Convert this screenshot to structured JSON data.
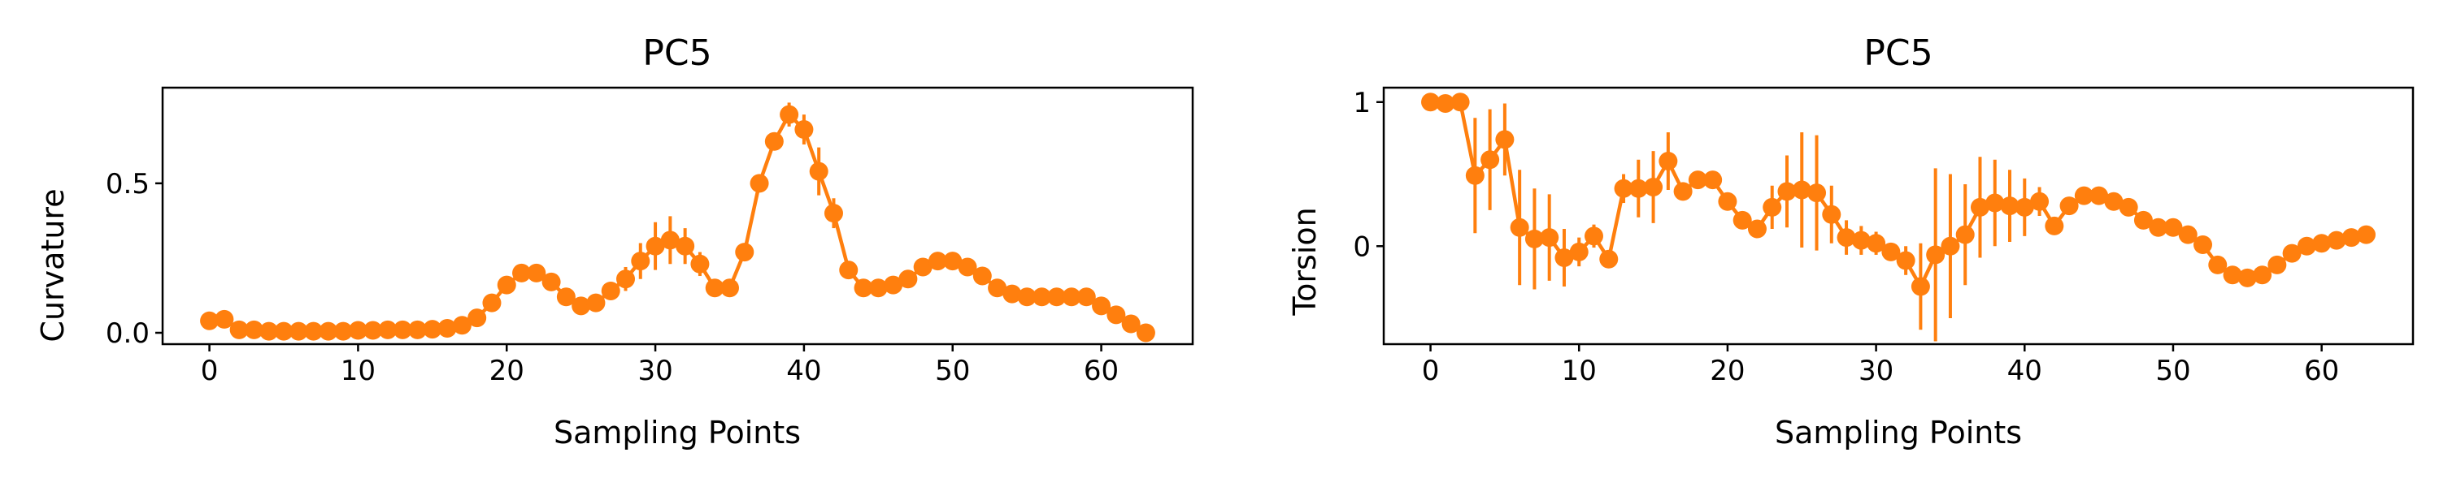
{
  "chart_data": [
    {
      "type": "line",
      "title": "PC5",
      "xlabel": "Sampling Points",
      "ylabel": "Curvature",
      "xlim": [
        -3.15,
        66.15
      ],
      "ylim": [
        -0.038,
        0.82
      ],
      "xticks": [
        0,
        10,
        20,
        30,
        40,
        50,
        60
      ],
      "yticks": [
        0.0,
        0.5
      ],
      "ytick_labels": [
        "0.0",
        "0.5"
      ],
      "color": "#ff7f0e",
      "markers": true,
      "error_bars": true,
      "series": [
        {
          "x": [
            0,
            1,
            2,
            3,
            4,
            5,
            6,
            7,
            8,
            9,
            10,
            11,
            12,
            13,
            14,
            15,
            16,
            17,
            18,
            19,
            20,
            21,
            22,
            23,
            24,
            25,
            26,
            27,
            28,
            29,
            30,
            31,
            32,
            33,
            34,
            35,
            36,
            37,
            38,
            39,
            40,
            41,
            42,
            43,
            44,
            45,
            46,
            47,
            48,
            49,
            50,
            51,
            52,
            53,
            54,
            55,
            56,
            57,
            58,
            59,
            60,
            61,
            62,
            63
          ],
          "y": [
            0.04,
            0.045,
            0.01,
            0.01,
            0.005,
            0.005,
            0.005,
            0.005,
            0.005,
            0.005,
            0.008,
            0.008,
            0.01,
            0.01,
            0.01,
            0.012,
            0.015,
            0.025,
            0.05,
            0.1,
            0.16,
            0.2,
            0.2,
            0.17,
            0.12,
            0.09,
            0.1,
            0.14,
            0.18,
            0.24,
            0.29,
            0.31,
            0.29,
            0.23,
            0.15,
            0.15,
            0.27,
            0.5,
            0.64,
            0.73,
            0.68,
            0.54,
            0.4,
            0.21,
            0.15,
            0.15,
            0.16,
            0.18,
            0.22,
            0.24,
            0.24,
            0.22,
            0.19,
            0.15,
            0.13,
            0.12,
            0.12,
            0.12,
            0.12,
            0.12,
            0.09,
            0.06,
            0.03,
            0.0
          ],
          "yerr": [
            0.005,
            0.005,
            0.005,
            0.005,
            0.004,
            0.004,
            0.004,
            0.004,
            0.004,
            0.004,
            0.004,
            0.004,
            0.004,
            0.004,
            0.004,
            0.005,
            0.005,
            0.006,
            0.008,
            0.01,
            0.015,
            0.015,
            0.015,
            0.015,
            0.015,
            0.015,
            0.02,
            0.03,
            0.04,
            0.06,
            0.08,
            0.08,
            0.06,
            0.04,
            0.02,
            0.02,
            0.02,
            0.03,
            0.03,
            0.04,
            0.05,
            0.08,
            0.05,
            0.03,
            0.02,
            0.015,
            0.015,
            0.015,
            0.015,
            0.015,
            0.015,
            0.015,
            0.015,
            0.015,
            0.012,
            0.012,
            0.012,
            0.012,
            0.012,
            0.012,
            0.01,
            0.01,
            0.01,
            0.005
          ]
        }
      ]
    },
    {
      "type": "line",
      "title": "PC5",
      "xlabel": "Sampling Points",
      "ylabel": "Torsion",
      "xlim": [
        -3.15,
        66.15
      ],
      "ylim": [
        -0.68,
        1.1
      ],
      "xticks": [
        0,
        10,
        20,
        30,
        40,
        50,
        60
      ],
      "yticks": [
        0,
        1
      ],
      "ytick_labels": [
        "0",
        "1"
      ],
      "color": "#ff7f0e",
      "markers": true,
      "error_bars": true,
      "series": [
        {
          "x": [
            0,
            1,
            2,
            3,
            4,
            5,
            6,
            7,
            8,
            9,
            10,
            11,
            12,
            13,
            14,
            15,
            16,
            17,
            18,
            19,
            20,
            21,
            22,
            23,
            24,
            25,
            26,
            27,
            28,
            29,
            30,
            31,
            32,
            33,
            34,
            35,
            36,
            37,
            38,
            39,
            40,
            41,
            42,
            43,
            44,
            45,
            46,
            47,
            48,
            49,
            50,
            51,
            52,
            53,
            54,
            55,
            56,
            57,
            58,
            59,
            60,
            61,
            62,
            63
          ],
          "y": [
            1.0,
            0.99,
            1.0,
            0.49,
            0.6,
            0.74,
            0.13,
            0.05,
            0.06,
            -0.08,
            -0.04,
            0.07,
            -0.09,
            0.4,
            0.4,
            0.41,
            0.59,
            0.38,
            0.46,
            0.46,
            0.31,
            0.18,
            0.12,
            0.27,
            0.38,
            0.39,
            0.37,
            0.22,
            0.06,
            0.04,
            0.02,
            -0.04,
            -0.1,
            -0.28,
            -0.06,
            0.0,
            0.08,
            0.27,
            0.3,
            0.28,
            0.27,
            0.31,
            0.14,
            0.28,
            0.35,
            0.35,
            0.31,
            0.27,
            0.18,
            0.13,
            0.13,
            0.08,
            0.01,
            -0.13,
            -0.2,
            -0.22,
            -0.2,
            -0.13,
            -0.05,
            0.0,
            0.02,
            0.04,
            0.06,
            0.08
          ],
          "yerr": [
            0.02,
            0.02,
            0.02,
            0.4,
            0.35,
            0.25,
            0.4,
            0.35,
            0.3,
            0.2,
            0.1,
            0.08,
            0.05,
            0.1,
            0.2,
            0.25,
            0.2,
            0.05,
            0.05,
            0.05,
            0.05,
            0.05,
            0.05,
            0.15,
            0.25,
            0.4,
            0.4,
            0.2,
            0.12,
            0.1,
            0.08,
            0.05,
            0.1,
            0.3,
            0.6,
            0.5,
            0.35,
            0.35,
            0.3,
            0.25,
            0.2,
            0.1,
            0.05,
            0.04,
            0.04,
            0.03,
            0.03,
            0.03,
            0.03,
            0.03,
            0.03,
            0.03,
            0.03,
            0.05,
            0.05,
            0.05,
            0.05,
            0.03,
            0.03,
            0.03,
            0.03,
            0.03,
            0.03,
            0.03
          ]
        }
      ]
    }
  ]
}
